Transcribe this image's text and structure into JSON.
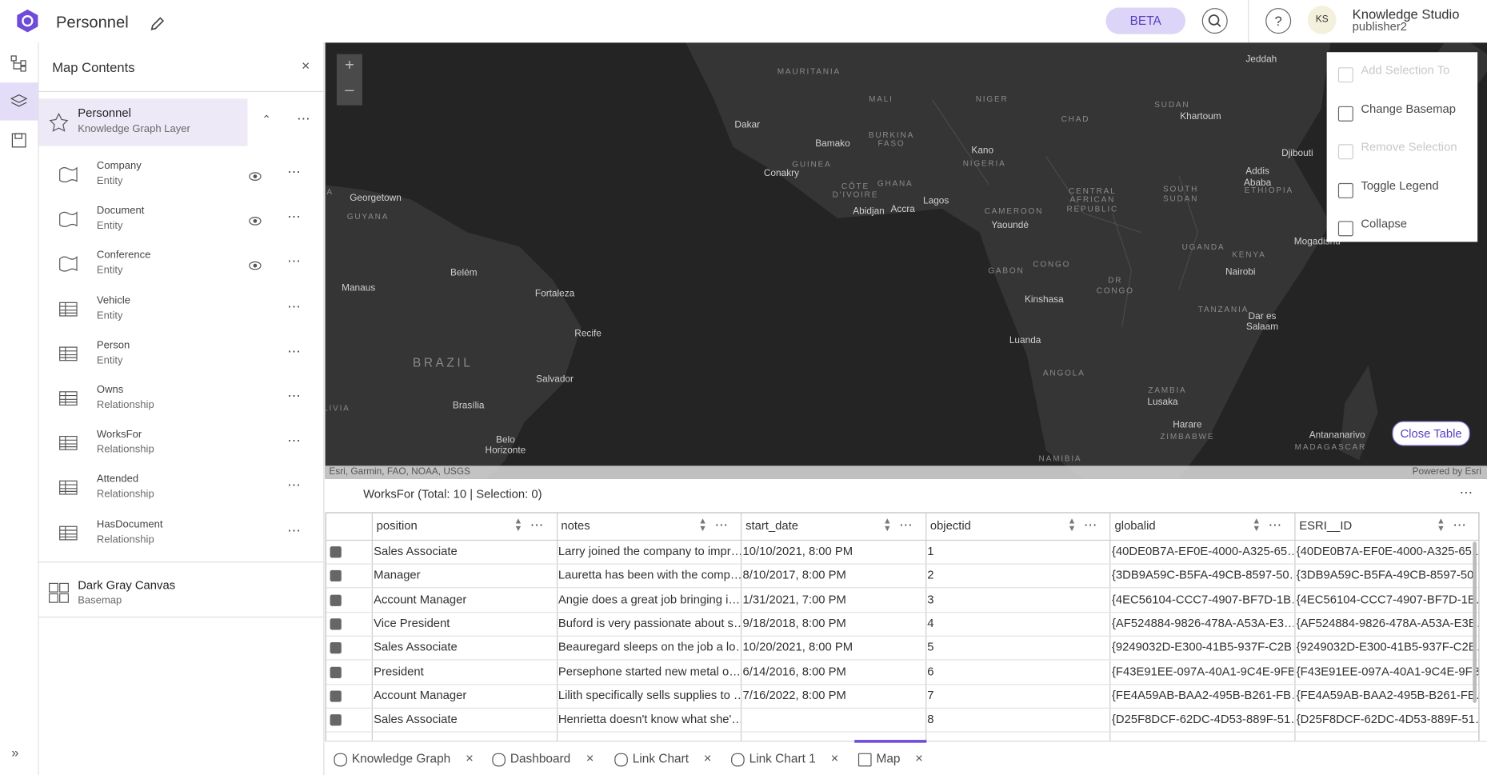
{
  "header": {
    "title": "Personnel",
    "badge": "BETA",
    "avatar": "KS",
    "user_name": "Knowledge Studio",
    "user_role": "publisher2"
  },
  "panel": {
    "title": "Map Contents",
    "layer": {
      "name": "Personnel",
      "type": "Knowledge Graph Layer"
    },
    "sublayers": [
      {
        "name": "Company",
        "type": "Entity"
      },
      {
        "name": "Document",
        "type": "Entity"
      },
      {
        "name": "Conference",
        "type": "Entity"
      },
      {
        "name": "Vehicle",
        "type": "Entity"
      },
      {
        "name": "Person",
        "type": "Entity"
      },
      {
        "name": "Owns",
        "type": "Relationship"
      },
      {
        "name": "WorksFor",
        "type": "Relationship"
      },
      {
        "name": "Attended",
        "type": "Relationship"
      },
      {
        "name": "HasDocument",
        "type": "Relationship"
      }
    ],
    "basemap": {
      "name": "Dark Gray Canvas",
      "type": "Basemap"
    }
  },
  "map": {
    "labels": [
      "MAURITANIA",
      "MALI",
      "NIGER",
      "CHAD",
      "SUDAN",
      "Khartoum",
      "Jeddah",
      "Dakar",
      "Bamako",
      "BURKINA",
      "FASO",
      "Kano",
      "NIGERIA",
      "Djibouti",
      "Conakry",
      "GUINEA",
      "CÔTE",
      "D'IVOIRE",
      "GHANA",
      "Abidjan",
      "Accra",
      "Lagos",
      "CENTRAL",
      "AFRICAN",
      "REPUBLIC",
      "SOUTH",
      "SUDAN",
      "Addis",
      "Ababa",
      "ETHIOPIA",
      "CAMEROON",
      "Yaoundé",
      "Georgetown",
      "GUYANA",
      "UGANDA",
      "KENYA",
      "Mogadishu",
      "GABON",
      "CONGO",
      "DR",
      "CONGO",
      "Nairobi",
      "Manaus",
      "Belém",
      "Fortaleza",
      "Kinshasa",
      "TANZANIA",
      "Dar es",
      "Salaam",
      "Recife",
      "BRAZIL",
      "Luanda",
      "ANGOLA",
      "Salvador",
      "Brasília",
      "LIVIA",
      "ZAMBIA",
      "Lusaka",
      "Harare",
      "ZIMBABWE",
      "Belo",
      "Horizonte",
      "Antananarivo",
      "MADAGASCAR",
      "NAMIBIA",
      "A"
    ],
    "attribution": "Esri, Garmin, FAO, NOAA, USGS",
    "powered_by": "Powered by Esri",
    "close_table": "Close Table"
  },
  "menu": {
    "items": [
      "Add Selection To",
      "Change Basemap",
      "Remove Selection",
      "Toggle Legend",
      "Collapse"
    ]
  },
  "table": {
    "caption": "WorksFor (Total: 10 | Selection: 0)",
    "columns": [
      "position",
      "notes",
      "start_date",
      "objectid",
      "globalid",
      "ESRI__ID"
    ],
    "rows": [
      [
        "Sales Associate",
        "Larry joined the company to impr…",
        "10/10/2021, 8:00 PM",
        1,
        "{40DE0B7A-EF0E-4000-A325-65…",
        "{40DE0B7A-EF0E-4000-A325-651…"
      ],
      [
        "Manager",
        "Lauretta has been with the comp…",
        "8/10/2017, 8:00 PM",
        2,
        "{3DB9A59C-B5FA-49CB-8597-50…",
        "{3DB9A59C-B5FA-49CB-8597-50…"
      ],
      [
        "Account Manager",
        "Angie does a great job bringing i…",
        "1/31/2021, 7:00 PM",
        3,
        "{4EC56104-CCC7-4907-BF7D-1B…",
        "{4EC56104-CCC7-4907-BF7D-1B…"
      ],
      [
        "Vice President",
        "Buford is very passionate about s…",
        "9/18/2018, 8:00 PM",
        4,
        "{AF524884-9826-478A-A53A-E3…",
        "{AF524884-9826-478A-A53A-E3E…"
      ],
      [
        "Sales Associate",
        "Beauregard sleeps on the job a lo…",
        "10/20/2021, 8:00 PM",
        5,
        "{9249032D-E300-41B5-937F-C2B…",
        "{9249032D-E300-41B5-937F-C2B…"
      ],
      [
        "President",
        "Persephone started new metal o…",
        "6/14/2016, 8:00 PM",
        6,
        "{F43E91EE-097A-40A1-9C4E-9FB…",
        "{F43E91EE-097A-40A1-9C4E-9FB…"
      ],
      [
        "Account Manager",
        "Lilith specifically sells supplies to …",
        "7/16/2022, 8:00 PM",
        7,
        "{FE4A59AB-BAA2-495B-B261-FB…",
        "{FE4A59AB-BAA2-495B-B261-FB…"
      ],
      [
        "Sales Associate",
        "Henrietta doesn't know what she'…",
        "",
        8,
        "{D25F8DCF-62DC-4D53-889F-51…",
        "{D25F8DCF-62DC-4D53-889F-51…"
      ]
    ]
  },
  "tabs": [
    "Knowledge Graph",
    "Dashboard",
    "Link Chart",
    "Link Chart 1",
    "Map"
  ]
}
